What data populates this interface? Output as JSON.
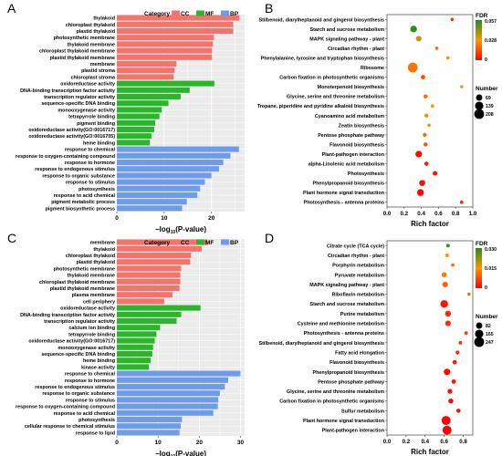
{
  "colors": {
    "CC": "#F4736A",
    "MF": "#2BB52B",
    "BP": "#6E9BEA",
    "panel_bg": "#EBEBEB",
    "grid": "#FFFFFF",
    "fdr_low": "#FF0000",
    "fdr_high": "#1E8C1E"
  },
  "chart_data": [
    {
      "panel": "A",
      "type": "bar",
      "orientation": "horizontal",
      "legend_title": "Category",
      "legend": [
        "CC",
        "MF",
        "BP"
      ],
      "xlabel_main": "−log",
      "xlabel_sub": "10",
      "xlabel_tail": "(P-value)",
      "xlim": [
        0,
        27
      ],
      "xticks": [
        0,
        10,
        20
      ],
      "grid": true,
      "categories": [
        {
          "label": "thylakoid",
          "value": 25.9,
          "cat": "CC"
        },
        {
          "label": "chloroplast thylakoid",
          "value": 24.6,
          "cat": "CC"
        },
        {
          "label": "plastid thylakoid",
          "value": 24.6,
          "cat": "CC"
        },
        {
          "label": "photosynthetic membrane",
          "value": 20.5,
          "cat": "CC"
        },
        {
          "label": "thylakoid membrane",
          "value": 20.3,
          "cat": "CC"
        },
        {
          "label": "chloroplast thylakoid membrane",
          "value": 20.1,
          "cat": "CC"
        },
        {
          "label": "plastid thylakoid membrane",
          "value": 20.1,
          "cat": "CC"
        },
        {
          "label": "membrane",
          "value": 12.6,
          "cat": "CC"
        },
        {
          "label": "plastid stroma",
          "value": 12.2,
          "cat": "CC"
        },
        {
          "label": "chloroplast stroma",
          "value": 12.0,
          "cat": "CC"
        },
        {
          "label": "oxidoreductase activity",
          "value": 20.6,
          "cat": "MF"
        },
        {
          "label": "DNA-binding transcription factor activity",
          "value": 15.4,
          "cat": "MF"
        },
        {
          "label": "transcription regulator activity",
          "value": 13.5,
          "cat": "MF"
        },
        {
          "label": "sequence-specific DNA binding",
          "value": 10.9,
          "cat": "MF"
        },
        {
          "label": "monooxygenase activity",
          "value": 9.5,
          "cat": "MF"
        },
        {
          "label": "tetrapyrrole binding",
          "value": 9.0,
          "cat": "MF"
        },
        {
          "label": "pigment binding",
          "value": 8.1,
          "cat": "MF"
        },
        {
          "label": "oxidoreductase activity(GO:0016717)",
          "value": 7.9,
          "cat": "MF"
        },
        {
          "label": "oxidoreductase activity(GO:0016705)",
          "value": 7.3,
          "cat": "MF"
        },
        {
          "label": "heme binding",
          "value": 7.0,
          "cat": "MF"
        },
        {
          "label": "response to chemical",
          "value": 25.8,
          "cat": "BP"
        },
        {
          "label": "response to oxygen-containing compound",
          "value": 24.0,
          "cat": "BP"
        },
        {
          "label": "response to hormone",
          "value": 22.5,
          "cat": "BP"
        },
        {
          "label": "response to endogenous stimulus",
          "value": 21.6,
          "cat": "BP"
        },
        {
          "label": "response to organic substance",
          "value": 20.0,
          "cat": "BP"
        },
        {
          "label": "response to stimulus",
          "value": 18.6,
          "cat": "BP"
        },
        {
          "label": "photosynthesis",
          "value": 17.6,
          "cat": "BP"
        },
        {
          "label": "response to acid chemical",
          "value": 17.0,
          "cat": "BP"
        },
        {
          "label": "pigment metabolic process",
          "value": 14.8,
          "cat": "BP"
        },
        {
          "label": "pigment biosynthetic process",
          "value": 13.8,
          "cat": "BP"
        }
      ]
    },
    {
      "panel": "B",
      "type": "scatter",
      "xlabel": "Rich factor",
      "xlim": [
        0,
        1.0
      ],
      "xticks": [
        0.0,
        0.2,
        0.4,
        0.6,
        0.8,
        1.0
      ],
      "legend_fdr_title": "FDR",
      "fdr_ticks": [
        "0.057",
        "0.028",
        "0"
      ],
      "legend_size_title": "Number",
      "size_ticks": [
        "69",
        "139",
        "208"
      ],
      "points": [
        {
          "label": "Stilbenoid, diarylheptanoid and gingerol biosynthesis",
          "x": 0.76,
          "n": 10,
          "fdr": 0.01
        },
        {
          "label": "Starch and sucrose metabolism",
          "x": 0.31,
          "n": 80,
          "fdr": 0.055
        },
        {
          "label": "MAPK signaling pathway - plant",
          "x": 0.37,
          "n": 50,
          "fdr": 0.035
        },
        {
          "label": "Circadian rhythm - plant",
          "x": 0.58,
          "n": 10,
          "fdr": 0.02
        },
        {
          "label": "Phenylalanine, tyrosine and tryptophan biosynthesis",
          "x": 0.71,
          "n": 10,
          "fdr": 0.03
        },
        {
          "label": "Ribosome",
          "x": 0.3,
          "n": 208,
          "fdr": 0.022
        },
        {
          "label": "Carbon fixation in photosynthetic organisms",
          "x": 0.42,
          "n": 25,
          "fdr": 0.015
        },
        {
          "label": "Monoterpenoid biosynthesis",
          "x": 0.87,
          "n": 8,
          "fdr": 0.03
        },
        {
          "label": "Glycine, serine and threonine metabolism",
          "x": 0.45,
          "n": 20,
          "fdr": 0.02
        },
        {
          "label": "Tropane, piperidine and pyridine alkaloid biosynthesis",
          "x": 0.53,
          "n": 10,
          "fdr": 0.03
        },
        {
          "label": "Cyanoamino acid metabolism",
          "x": 0.46,
          "n": 20,
          "fdr": 0.03
        },
        {
          "label": "Zeatin biosynthesis",
          "x": 0.49,
          "n": 10,
          "fdr": 0.03
        },
        {
          "label": "Pentose phosphate pathway",
          "x": 0.44,
          "n": 18,
          "fdr": 0.02
        },
        {
          "label": "Flavonoid biosynthesis",
          "x": 0.45,
          "n": 20,
          "fdr": 0.015
        },
        {
          "label": "Plant-pathogen interaction",
          "x": 0.37,
          "n": 80,
          "fdr": 0.002
        },
        {
          "label": "alpha-Linolenic acid metabolism",
          "x": 0.46,
          "n": 22,
          "fdr": 0.005
        },
        {
          "label": "Photosynthesis",
          "x": 0.56,
          "n": 30,
          "fdr": 0.003
        },
        {
          "label": "Phenylpropanoid biosynthesis",
          "x": 0.41,
          "n": 60,
          "fdr": 0.002
        },
        {
          "label": "Plant hormone signal transduction",
          "x": 0.39,
          "n": 85,
          "fdr": 0.001
        },
        {
          "label": "Photosynthesis - antenna proteins",
          "x": 0.87,
          "n": 12,
          "fdr": 0.008
        }
      ]
    },
    {
      "panel": "C",
      "type": "bar",
      "orientation": "horizontal",
      "legend_title": "Category",
      "legend": [
        "CC",
        "MF",
        "BP"
      ],
      "xlabel_main": "−log",
      "xlabel_sub": "10",
      "xlabel_tail": "(P-value)",
      "xlim": [
        0,
        31
      ],
      "xticks": [
        0,
        10,
        20,
        30
      ],
      "grid": true,
      "categories": [
        {
          "label": "membrane",
          "value": 22.0,
          "cat": "CC"
        },
        {
          "label": "thylakoid",
          "value": 20.6,
          "cat": "CC"
        },
        {
          "label": "chloroplast thylakoid",
          "value": 18.0,
          "cat": "CC"
        },
        {
          "label": "plastid thylakoid",
          "value": 17.8,
          "cat": "CC"
        },
        {
          "label": "photosynthetic membrane",
          "value": 15.6,
          "cat": "CC"
        },
        {
          "label": "thylakoid membrane",
          "value": 15.4,
          "cat": "CC"
        },
        {
          "label": "chloroplast thylakoid membrane",
          "value": 15.4,
          "cat": "CC"
        },
        {
          "label": "plastid thylakoid membrane",
          "value": 15.2,
          "cat": "CC"
        },
        {
          "label": "plasma membrane",
          "value": 13.5,
          "cat": "CC"
        },
        {
          "label": "cell periphery",
          "value": 11.5,
          "cat": "CC"
        },
        {
          "label": "oxidoreductase activity",
          "value": 20.3,
          "cat": "MF"
        },
        {
          "label": "DNA-binding transcription factor activity",
          "value": 15.6,
          "cat": "MF"
        },
        {
          "label": "transcription regulator activity",
          "value": 14.5,
          "cat": "MF"
        },
        {
          "label": "calcium ion binding",
          "value": 10.5,
          "cat": "MF"
        },
        {
          "label": "tetrapyrrole binding",
          "value": 9.6,
          "cat": "MF"
        },
        {
          "label": "oxidoreductase activity(GO:0016717)",
          "value": 9.2,
          "cat": "MF"
        },
        {
          "label": "monooxygenase activity",
          "value": 8.8,
          "cat": "MF"
        },
        {
          "label": "sequence-specific DNA binding",
          "value": 8.6,
          "cat": "MF"
        },
        {
          "label": "heme binding",
          "value": 8.2,
          "cat": "MF"
        },
        {
          "label": "kinase activity",
          "value": 7.8,
          "cat": "MF"
        },
        {
          "label": "response to chemical",
          "value": 30.0,
          "cat": "BP"
        },
        {
          "label": "response to hormone",
          "value": 27.0,
          "cat": "BP"
        },
        {
          "label": "response to endogenous stimulus",
          "value": 26.2,
          "cat": "BP"
        },
        {
          "label": "response to organic substance",
          "value": 25.0,
          "cat": "BP"
        },
        {
          "label": "response to stimulus",
          "value": 24.6,
          "cat": "BP"
        },
        {
          "label": "response to oxygen-containing compound",
          "value": 24.5,
          "cat": "BP"
        },
        {
          "label": "response to acid chemical",
          "value": 23.4,
          "cat": "BP"
        },
        {
          "label": "photosynthesis",
          "value": 15.8,
          "cat": "BP"
        },
        {
          "label": "cellular response to chemical stimulus",
          "value": 15.5,
          "cat": "BP"
        },
        {
          "label": "response to lipid",
          "value": 15.2,
          "cat": "BP"
        }
      ]
    },
    {
      "panel": "D",
      "type": "scatter",
      "xlabel": "Rich factor",
      "xlim": [
        0,
        0.9
      ],
      "xticks": [
        0.0,
        0.2,
        0.4,
        0.6,
        0.8
      ],
      "legend_fdr_title": "FDR",
      "fdr_ticks": [
        "0.030",
        "0.015",
        "0"
      ],
      "legend_size_title": "Number",
      "size_ticks": [
        "82",
        "165",
        "247"
      ],
      "points": [
        {
          "label": "Citrate cycle (TCA cycle)",
          "x": 0.64,
          "n": 15,
          "fdr": 0.028
        },
        {
          "label": "Circadian rhythm - plant",
          "x": 0.63,
          "n": 20,
          "fdr": 0.015
        },
        {
          "label": "Porphyrin metabolism",
          "x": 0.69,
          "n": 15,
          "fdr": 0.012
        },
        {
          "label": "Pyruvate metabolism",
          "x": 0.6,
          "n": 45,
          "fdr": 0.012
        },
        {
          "label": "MAPK signaling pathway - plant",
          "x": 0.61,
          "n": 60,
          "fdr": 0.01
        },
        {
          "label": "Riboflavin metabolism",
          "x": 0.86,
          "n": 10,
          "fdr": 0.01
        },
        {
          "label": "Starch and sucrose metabolism",
          "x": 0.6,
          "n": 130,
          "fdr": 0.002
        },
        {
          "label": "Purine metabolism",
          "x": 0.64,
          "n": 70,
          "fdr": 0.004
        },
        {
          "label": "Cysteine and methionine metabolism",
          "x": 0.64,
          "n": 60,
          "fdr": 0.004
        },
        {
          "label": "Photosynthesis - antenna proteins",
          "x": 0.83,
          "n": 15,
          "fdr": 0.006
        },
        {
          "label": "Stilbenoid, diarylheptanoid and gingerol biosynthesis",
          "x": 0.77,
          "n": 15,
          "fdr": 0.005
        },
        {
          "label": "Fatty acid elongation",
          "x": 0.74,
          "n": 20,
          "fdr": 0.004
        },
        {
          "label": "Flavonoid biosynthesis",
          "x": 0.71,
          "n": 30,
          "fdr": 0.003
        },
        {
          "label": "Phenylpropanoid biosynthesis",
          "x": 0.63,
          "n": 90,
          "fdr": 0.001
        },
        {
          "label": "Pentose phosphate pathway",
          "x": 0.7,
          "n": 30,
          "fdr": 0.002
        },
        {
          "label": "Glycine, serine and threonine metabolism",
          "x": 0.66,
          "n": 40,
          "fdr": 0.002
        },
        {
          "label": "Carbon fixation in photosynthetic organisms",
          "x": 0.67,
          "n": 45,
          "fdr": 0.001
        },
        {
          "label": "Sulfur metabolism",
          "x": 0.75,
          "n": 25,
          "fdr": 0.001
        },
        {
          "label": "Plant hormone signal transduction",
          "x": 0.62,
          "n": 200,
          "fdr": 0.0
        },
        {
          "label": "Plant-pathogen interaction",
          "x": 0.63,
          "n": 200,
          "fdr": 0.0
        }
      ]
    }
  ]
}
